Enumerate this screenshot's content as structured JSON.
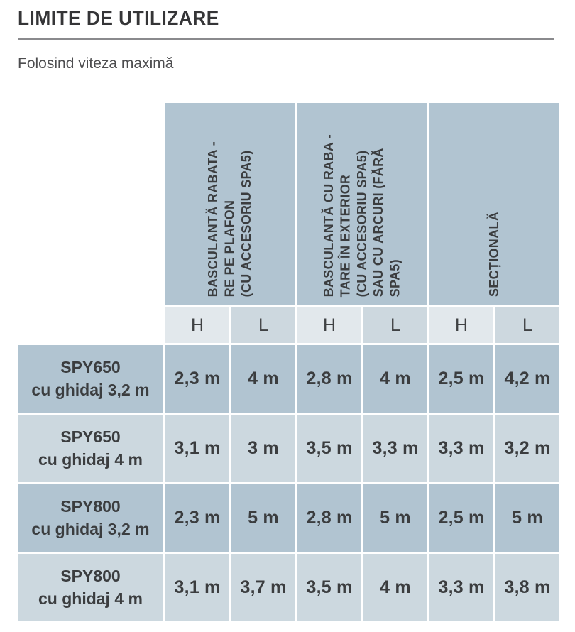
{
  "page": {
    "title": "LIMITE DE UTILIZARE",
    "subtitle": "Folosind viteza maximă"
  },
  "table": {
    "column_groups": [
      {
        "label": "BASCULANTĂ RABATA -\nRE PE PLAFON\n(CU ACCESORIU SPA5)"
      },
      {
        "label": "BASCULANTĂ CU RABA -\nTARE ÎN EXTERIOR\n(CU ACCESORIU SPA5)\nSAU CU ARCURI (FĂRĂ\nSPA5)"
      },
      {
        "label": "SECȚIONALĂ"
      }
    ],
    "sub_headers": [
      "H",
      "L",
      "H",
      "L",
      "H",
      "L"
    ],
    "rows": [
      {
        "model": "SPY650",
        "variant": "cu ghidaj 3,2 m",
        "values": [
          "2,3 m",
          "4 m",
          "2,8 m",
          "4 m",
          "2,5 m",
          "4,2 m"
        ]
      },
      {
        "model": "SPY650",
        "variant": "cu ghidaj 4 m",
        "values": [
          "3,1 m",
          "3 m",
          "3,5 m",
          "3,3 m",
          "3,3 m",
          "3,2 m"
        ]
      },
      {
        "model": "SPY800",
        "variant": "cu ghidaj 3,2 m",
        "values": [
          "2,3 m",
          "5 m",
          "2,8 m",
          "5 m",
          "2,5 m",
          "5 m"
        ]
      },
      {
        "model": "SPY800",
        "variant": "cu ghidaj 4 m",
        "values": [
          "3,1 m",
          "3,7 m",
          "3,5 m",
          "4 m",
          "3,3 m",
          "3,8 m"
        ]
      }
    ]
  },
  "colors": {
    "cell_dark": "#b1c4d1",
    "cell_light": "#ccd8df",
    "subheader_h": "#e2e8ec",
    "subheader_l": "#cdd8df",
    "text": "#3b3d3f",
    "title_underline": "#8a8a8d"
  }
}
